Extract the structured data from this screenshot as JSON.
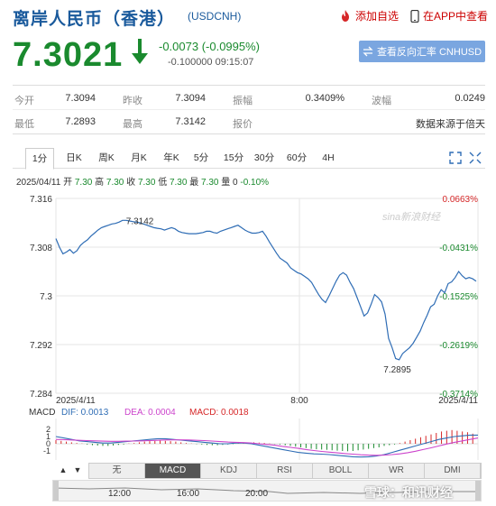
{
  "header": {
    "title": "离岸人民币（香港）",
    "code": "(USDCNH)",
    "add_watchlist": "添加自选",
    "open_app": "在APP中查看"
  },
  "quote": {
    "price": "7.3021",
    "change": "-0.0073 (-0.0995%)",
    "sub_change": "-0.100000",
    "time": "09:15:07",
    "reverse_button": "查看反向汇率 CNHUSD"
  },
  "stats": {
    "open_label": "今开",
    "open_value": "7.3094",
    "prev_close_label": "昨收",
    "prev_close_value": "7.3094",
    "amplitude_label": "振幅",
    "amplitude_value": "0.3409%",
    "wave_label": "波幅",
    "wave_value": "0.0249",
    "low_label": "最低",
    "low_value": "7.2893",
    "high_label": "最高",
    "high_value": "7.3142",
    "quote_label": "报价",
    "quote_value": "数据来源于倍天"
  },
  "tabs": [
    "1分",
    "日K",
    "周K",
    "月K",
    "年K",
    "5分",
    "15分",
    "30分",
    "60分",
    "4H"
  ],
  "info_line": {
    "date": "2025/04/11",
    "open_label": "开",
    "open": "7.30",
    "high_label": "高",
    "high": "7.30",
    "prev_label": "收",
    "prev": "7.30",
    "low_label": "低",
    "low": "7.30",
    "last_label": "最",
    "last": "7.30",
    "vol_label": "量",
    "vol": "0",
    "pct": "-0.10%"
  },
  "colors": {
    "up": "#d62728",
    "down": "#1a8a2e",
    "line": "#2f6db5",
    "accent": "#1a5a9c"
  },
  "chart_data": {
    "type": "line",
    "y_ticks": [
      "7.316",
      "7.308",
      "7.3",
      "7.292",
      "7.284"
    ],
    "y_tick_values": [
      7.316,
      7.308,
      7.3,
      7.292,
      7.284
    ],
    "pct_ticks": [
      "0.0663%",
      "-0.0431%",
      "-0.1525%",
      "-0.2619%",
      "-0.3714%"
    ],
    "ylim": [
      7.284,
      7.316
    ],
    "x_labels": [
      "2025/4/11",
      "8:00",
      "2025/4/11"
    ],
    "high_label": "7.3142",
    "low_label": "7.2895",
    "watermark": "sina新浪财经",
    "grid": true,
    "series": [
      {
        "values": [
          7.3094,
          7.308,
          7.3069,
          7.3072,
          7.3076,
          7.307,
          7.3074,
          7.3083,
          7.3088,
          7.3092,
          7.3098,
          7.3103,
          7.3108,
          7.3112,
          7.3114,
          7.3116,
          7.3118,
          7.3119,
          7.3121,
          7.3124,
          7.3124,
          7.3123,
          7.3122,
          7.3121,
          7.312,
          7.3118,
          7.3116,
          7.3114,
          7.3112,
          7.3111,
          7.311,
          7.3108,
          7.311,
          7.3112,
          7.311,
          7.3106,
          7.3104,
          7.3103,
          7.3102,
          7.3102,
          7.3102,
          7.3103,
          7.3104,
          7.3106,
          7.3106,
          7.3104,
          7.3103,
          7.3106,
          7.3108,
          7.311,
          7.3112,
          7.3114,
          7.3116,
          7.3112,
          7.3108,
          7.3105,
          7.3103,
          7.3103,
          7.3104,
          7.3106,
          7.3098,
          7.3088,
          7.3079,
          7.307,
          7.3062,
          7.3058,
          7.3054,
          7.3046,
          7.3042,
          7.3038,
          7.3036,
          7.3032,
          7.3028,
          7.3022,
          7.3012,
          7.3002,
          7.2994,
          7.2989,
          7.3,
          7.3012,
          7.3024,
          7.3034,
          7.3038,
          7.3034,
          7.3022,
          7.3012,
          7.2997,
          7.2982,
          7.2967,
          7.2972,
          7.2986,
          7.3002,
          7.2997,
          7.299,
          7.297,
          7.293,
          7.2915,
          7.2897,
          7.2895,
          7.2905,
          7.291,
          7.2915,
          7.2922,
          7.2932,
          7.2942,
          7.2956,
          7.2968,
          7.2982,
          7.2986,
          7.3,
          7.301,
          7.3005,
          7.302,
          7.3023,
          7.303,
          7.304,
          7.3033,
          7.3028,
          7.303,
          7.3028,
          7.3024
        ]
      }
    ]
  },
  "macd": {
    "label": "MACD",
    "dif_label": "DIF:",
    "dif": "0.0013",
    "dea_label": "DEA:",
    "dea": "0.0004",
    "macd_label": "MACD:",
    "macd_val": "0.0018",
    "ticks": [
      "2",
      "1",
      "0",
      "-1"
    ],
    "bars": [
      0.25,
      0.2,
      0.15,
      0.1,
      0.05,
      0.02,
      -0.05,
      -0.1,
      -0.12,
      -0.15,
      -0.15,
      -0.12,
      -0.08,
      -0.05,
      0.02,
      0.05,
      0.1,
      0.15,
      0.18,
      0.2,
      0.22,
      0.2,
      0.18,
      0.15,
      0.1,
      0.05,
      0.02,
      -0.02,
      -0.05,
      -0.08,
      -0.1,
      -0.1,
      -0.08,
      -0.05,
      -0.02,
      0.02,
      0.05,
      0.08,
      0.1,
      0.08,
      0.05,
      0.02,
      -0.02,
      -0.05,
      -0.1,
      -0.15,
      -0.2,
      -0.25,
      -0.3,
      -0.35,
      -0.38,
      -0.4,
      -0.42,
      -0.45,
      -0.48,
      -0.5,
      -0.52,
      -0.5,
      -0.45,
      -0.4,
      -0.35,
      -0.3,
      -0.25,
      -0.15,
      -0.1,
      -0.05,
      0.05,
      0.15,
      0.25,
      0.35,
      0.45,
      0.55,
      0.65,
      0.75,
      0.85,
      0.9,
      0.95,
      0.9,
      0.85,
      0.8,
      0.7
    ],
    "dif_series": [
      0.5,
      0.4,
      0.3,
      0.2,
      0.15,
      0.1,
      0.05,
      0.05,
      0.1,
      0.15,
      0.2,
      0.25,
      0.3,
      0.35,
      0.35,
      0.3,
      0.25,
      0.2,
      0.15,
      0.1,
      0.05,
      0.0,
      0.0,
      0.05,
      0.05,
      0.0,
      -0.1,
      -0.2,
      -0.3,
      -0.4,
      -0.5,
      -0.6,
      -0.65,
      -0.7,
      -0.72,
      -0.75,
      -0.8,
      -0.85,
      -0.9,
      -0.92,
      -0.9,
      -0.85,
      -0.75,
      -0.6,
      -0.45,
      -0.3,
      -0.15,
      0.0,
      0.15,
      0.3,
      0.4,
      0.5,
      0.55,
      0.6,
      0.6
    ],
    "dea_series": [
      0.3,
      0.28,
      0.26,
      0.24,
      0.22,
      0.2,
      0.18,
      0.17,
      0.17,
      0.18,
      0.19,
      0.2,
      0.22,
      0.24,
      0.26,
      0.27,
      0.27,
      0.26,
      0.24,
      0.22,
      0.19,
      0.15,
      0.12,
      0.1,
      0.08,
      0.05,
      0.0,
      -0.05,
      -0.1,
      -0.18,
      -0.25,
      -0.32,
      -0.4,
      -0.47,
      -0.53,
      -0.58,
      -0.63,
      -0.68,
      -0.72,
      -0.76,
      -0.79,
      -0.8,
      -0.79,
      -0.75,
      -0.7,
      -0.62,
      -0.52,
      -0.4,
      -0.28,
      -0.15,
      -0.02,
      0.1,
      0.2,
      0.3,
      0.4
    ]
  },
  "indicators": [
    "无",
    "MACD",
    "KDJ",
    "RSI",
    "BOLL",
    "WR",
    "DMI"
  ],
  "active_indicator": "MACD",
  "timeline": {
    "labels": [
      "12:00",
      "16:00",
      "20:00"
    ]
  },
  "watermark_footer": "雪球：和讯财经"
}
